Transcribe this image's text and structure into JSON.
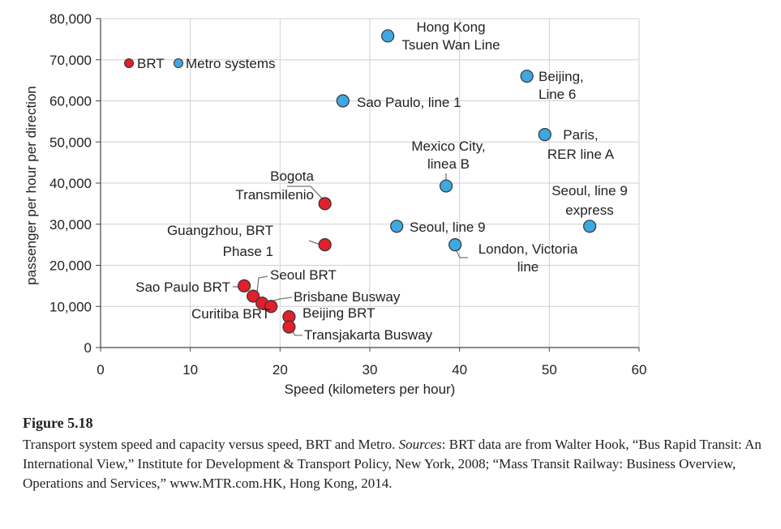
{
  "chart_data": {
    "type": "scatter",
    "xlabel": "Speed (kilometers per hour)",
    "ylabel": "passenger per hour per direction",
    "xlim": [
      0,
      60
    ],
    "ylim": [
      0,
      80000
    ],
    "x_ticks": [
      0,
      10,
      20,
      30,
      40,
      50,
      60
    ],
    "x_tick_labels": [
      "0",
      "10",
      "20",
      "30",
      "40",
      "50",
      "60"
    ],
    "y_ticks": [
      0,
      10000,
      20000,
      30000,
      40000,
      50000,
      60000,
      70000,
      80000
    ],
    "y_tick_labels": [
      "0",
      "10,000",
      "20,000",
      "30,000",
      "40,000",
      "50,000",
      "60,000",
      "70,000",
      "80,000"
    ],
    "legend": [
      {
        "name": "BRT",
        "color": "#e0202a"
      },
      {
        "name": "Metro systems",
        "color": "#3ea8e0"
      }
    ],
    "series": [
      {
        "name": "BRT",
        "color": "#e0202a",
        "points": [
          {
            "label": "Bogota Transmilenio",
            "label_lines": [
              "Bogota",
              "Transmilenio"
            ],
            "x": 25,
            "y": 35000
          },
          {
            "label": "Guangzhou, BRT Phase 1",
            "label_lines": [
              "Guangzhou, BRT",
              "Phase 1"
            ],
            "x": 25,
            "y": 25000
          },
          {
            "label": "Sao Paulo BRT",
            "label_lines": [
              "Sao Paulo BRT"
            ],
            "x": 16,
            "y": 15000
          },
          {
            "label": "Seoul BRT",
            "label_lines": [
              "Seoul BRT"
            ],
            "x": 17,
            "y": 12500
          },
          {
            "label": "Brisbane Busway",
            "label_lines": [
              "Brisbane Busway"
            ],
            "x": 18,
            "y": 10800
          },
          {
            "label": "Curitiba BRT",
            "label_lines": [
              "Curitiba BRT"
            ],
            "x": 19,
            "y": 10000
          },
          {
            "label": "Beijing BRT",
            "label_lines": [
              "Beijing BRT"
            ],
            "x": 21,
            "y": 7500
          },
          {
            "label": "Transjakarta Busway",
            "label_lines": [
              "Transjakarta Busway"
            ],
            "x": 21,
            "y": 5000
          }
        ]
      },
      {
        "name": "Metro systems",
        "color": "#3ea8e0",
        "points": [
          {
            "label": "Hong Kong Tsuen Wan Line",
            "label_lines": [
              "Hong Kong",
              "Tsuen Wan Line"
            ],
            "x": 32,
            "y": 75800
          },
          {
            "label": "Beijing, Line 6",
            "label_lines": [
              "Beijing,",
              "Line 6"
            ],
            "x": 47.5,
            "y": 66000
          },
          {
            "label": "Sao Paulo, line 1",
            "label_lines": [
              "Sao Paulo, line 1"
            ],
            "x": 27,
            "y": 60000
          },
          {
            "label": "Paris, RER line A",
            "label_lines": [
              "Paris,",
              "RER line A"
            ],
            "x": 49.5,
            "y": 51800
          },
          {
            "label": "Mexico City, linea B",
            "label_lines": [
              "Mexico City,",
              "linea B"
            ],
            "x": 38.5,
            "y": 39300
          },
          {
            "label": "Seoul, line 9 express",
            "label_lines": [
              "Seoul, line 9",
              "express"
            ],
            "x": 54.5,
            "y": 29500
          },
          {
            "label": "Seoul, line 9",
            "label_lines": [
              "Seoul, line 9"
            ],
            "x": 33,
            "y": 29500
          },
          {
            "label": "London, Victoria line",
            "label_lines": [
              "London, Victoria",
              "line"
            ],
            "x": 39.5,
            "y": 25000
          }
        ]
      }
    ]
  },
  "caption": {
    "title": "Figure 5.18",
    "text_before_sources": "Transport system speed and capacity versus speed, BRT and Metro. ",
    "sources_label": "Sources",
    "text_after_sources": ": BRT data are from Walter Hook, “Bus Rapid Transit: An International View,” Institute for Development & Transport Policy, New York, 2008; “Mass Transit Railway: Business Overview, Operations and Services,” www.MTR.com.HK, Hong Kong, 2014."
  }
}
